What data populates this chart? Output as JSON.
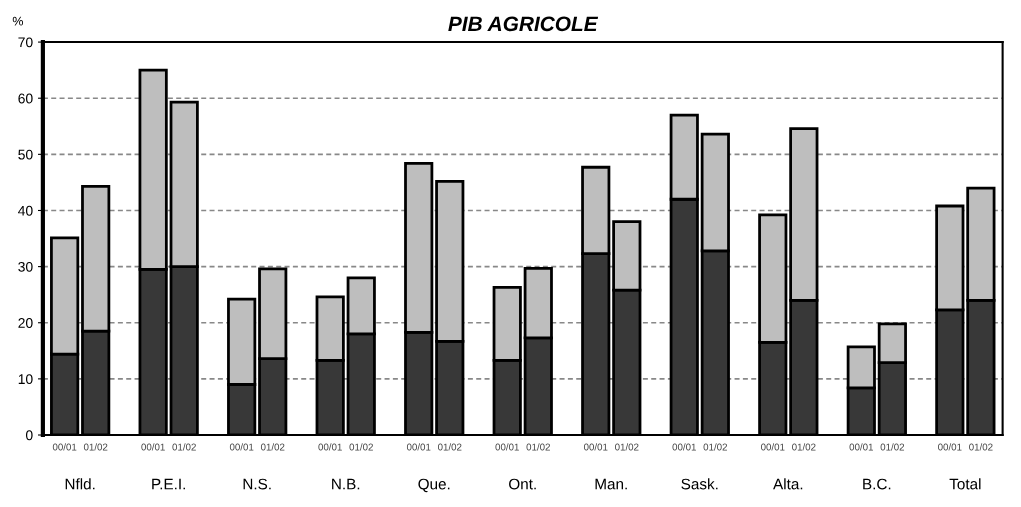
{
  "chart_data": {
    "type": "bar",
    "title": "PIB AGRICOLE",
    "ylabel": "%",
    "categories": [
      "00/01",
      "01/02",
      "00/01",
      "01/02",
      "00/01",
      "01/02",
      "00/01",
      "01/02",
      "00/01",
      "01/02",
      "00/01",
      "01/02",
      "00/01",
      "01/02",
      "00/01",
      "01/02",
      "00/01",
      "01/02",
      "00/01",
      "01/02",
      "00/01",
      "01/02"
    ],
    "stacked": true,
    "series": [
      {
        "color": "#383838",
        "values": [
          14.4,
          18.5,
          29.5,
          30,
          9,
          13.6,
          13.3,
          18,
          18.3,
          16.7,
          13.3,
          17.3,
          32.3,
          25.8,
          42,
          32.8,
          16.5,
          24,
          8.4,
          12.9,
          22.3,
          24
        ]
      },
      {
        "color": "#bebebe",
        "values": [
          20.7,
          25.8,
          35.5,
          29.3,
          15.2,
          16.0,
          11.3,
          10.0,
          30.1,
          28.5,
          13.0,
          12.4,
          15.4,
          12.2,
          15.0,
          20.8,
          22.7,
          30.6,
          7.3,
          6.9,
          18.5,
          20.0
        ]
      }
    ],
    "annotations": [
      "Nfld.",
      "P.E.I.",
      "N.S.",
      "N.B.",
      "Que.",
      "Ont.",
      "Man.",
      "Sask.",
      "Alta.",
      "B.C.",
      "Total"
    ],
    "ylim": [
      0,
      70
    ],
    "yticks": [
      0,
      10,
      20,
      30,
      40,
      50,
      60,
      70
    ],
    "grid": "y"
  }
}
